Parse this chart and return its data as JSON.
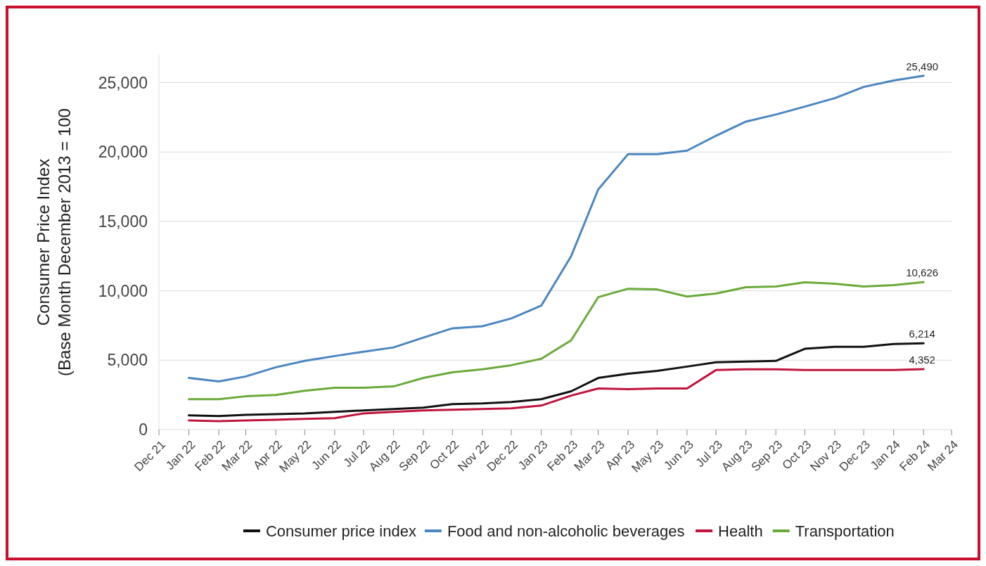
{
  "chart_data": {
    "type": "line",
    "ylabel": "Consumer Price Index\n(Base Month December 2013 = 100",
    "x": [
      "2022-01",
      "2022-02",
      "2022-03",
      "2022-04",
      "2022-05",
      "2022-06",
      "2022-07",
      "2022-08",
      "2022-09",
      "2022-10",
      "2022-11",
      "2022-12",
      "2023-01",
      "2023-02",
      "2023-03",
      "2023-04",
      "2023-05",
      "2023-06",
      "2023-07",
      "2023-08",
      "2023-09",
      "2023-10",
      "2023-11",
      "2023-12",
      "2024-01",
      "2024-02"
    ],
    "xlim": [
      "2021-12",
      "2024-03"
    ],
    "xticks": [
      {
        "value": "2021-12",
        "label": "Dec 21"
      },
      {
        "value": "2022-01",
        "label": "Jan 22"
      },
      {
        "value": "2022-02",
        "label": "Feb 22"
      },
      {
        "value": "2022-03",
        "label": "Mar 22"
      },
      {
        "value": "2022-04",
        "label": "Apr 22"
      },
      {
        "value": "2022-05",
        "label": "May 22"
      },
      {
        "value": "2022-06",
        "label": "Jun 22"
      },
      {
        "value": "2022-07",
        "label": "Jul 22"
      },
      {
        "value": "2022-08",
        "label": "Aug 22"
      },
      {
        "value": "2022-09",
        "label": "Sep 22"
      },
      {
        "value": "2022-10",
        "label": "Oct 22"
      },
      {
        "value": "2022-11",
        "label": "Nov 22"
      },
      {
        "value": "2022-12",
        "label": "Dec 22"
      },
      {
        "value": "2023-01",
        "label": "Jan 23"
      },
      {
        "value": "2023-02",
        "label": "Feb 23"
      },
      {
        "value": "2023-03",
        "label": "Mar 23"
      },
      {
        "value": "2023-04",
        "label": "Apr 23"
      },
      {
        "value": "2023-05",
        "label": "May 23"
      },
      {
        "value": "2023-06",
        "label": "Jun 23"
      },
      {
        "value": "2023-07",
        "label": "Jul 23"
      },
      {
        "value": "2023-08",
        "label": "Aug 23"
      },
      {
        "value": "2023-09",
        "label": "Sep 23"
      },
      {
        "value": "2023-10",
        "label": "Oct 23"
      },
      {
        "value": "2023-11",
        "label": "Nov 23"
      },
      {
        "value": "2023-12",
        "label": "Dec 23"
      },
      {
        "value": "2024-01",
        "label": "Jan 24"
      },
      {
        "value": "2024-02",
        "label": "Feb 24"
      },
      {
        "value": "2024-03",
        "label": "Mar 24"
      }
    ],
    "ylim": [
      0,
      27000
    ],
    "yticks": [
      {
        "value": 0,
        "label": "0"
      },
      {
        "value": 5000,
        "label": "5,000"
      },
      {
        "value": 10000,
        "label": "10,000"
      },
      {
        "value": 15000,
        "label": "15,000"
      },
      {
        "value": 20000,
        "label": "20,000"
      },
      {
        "value": 25000,
        "label": "25,000"
      }
    ],
    "grid": "y",
    "legend": "bottom",
    "marker": "none",
    "line_style": "solid",
    "series": [
      {
        "name": "Consumer price index",
        "color": "#111111",
        "values": [
          1020,
          970,
          1070,
          1120,
          1170,
          1280,
          1380,
          1480,
          1580,
          1840,
          1890,
          1990,
          2190,
          2760,
          3720,
          4030,
          4230,
          4540,
          4850,
          4900,
          4950,
          5820,
          5970,
          5970,
          6170,
          6214
        ],
        "value_labels": [
          null,
          null,
          null,
          null,
          null,
          null,
          null,
          null,
          null,
          null,
          null,
          null,
          null,
          null,
          null,
          null,
          null,
          null,
          null,
          null,
          null,
          null,
          null,
          null,
          null,
          "6,214"
        ]
      },
      {
        "name": "Food and non-alcoholic beverages",
        "color": "#4a86c0",
        "values": [
          3720,
          3470,
          3830,
          4490,
          4950,
          5300,
          5610,
          5920,
          6630,
          7300,
          7450,
          8010,
          8930,
          12500,
          17300,
          19850,
          19850,
          20100,
          21170,
          22190,
          22700,
          23270,
          23880,
          24690,
          25150,
          25490
        ],
        "value_labels": [
          null,
          null,
          null,
          null,
          null,
          null,
          null,
          null,
          null,
          null,
          null,
          null,
          null,
          null,
          null,
          null,
          null,
          null,
          null,
          null,
          null,
          null,
          null,
          null,
          null,
          "25,490"
        ]
      },
      {
        "name": "Health",
        "color": "#c0143c",
        "values": [
          660,
          610,
          660,
          710,
          770,
          820,
          1170,
          1280,
          1380,
          1430,
          1480,
          1530,
          1730,
          2450,
          2960,
          2910,
          2960,
          2960,
          4290,
          4340,
          4340,
          4290,
          4290,
          4290,
          4290,
          4352
        ],
        "value_labels": [
          null,
          null,
          null,
          null,
          null,
          null,
          null,
          null,
          null,
          null,
          null,
          null,
          null,
          null,
          null,
          null,
          null,
          null,
          null,
          null,
          null,
          null,
          null,
          null,
          null,
          "4,352"
        ]
      },
      {
        "name": "Transportation",
        "color": "#6aaa3a",
        "values": [
          2190,
          2190,
          2400,
          2500,
          2800,
          3010,
          3010,
          3110,
          3720,
          4130,
          4340,
          4640,
          5100,
          6430,
          9540,
          10150,
          10100,
          9590,
          9800,
          10260,
          10310,
          10610,
          10510,
          10310,
          10410,
          10626
        ],
        "value_labels": [
          null,
          null,
          null,
          null,
          null,
          null,
          null,
          null,
          null,
          null,
          null,
          null,
          null,
          null,
          null,
          null,
          null,
          null,
          null,
          null,
          null,
          null,
          null,
          null,
          null,
          "10,626"
        ]
      }
    ]
  }
}
